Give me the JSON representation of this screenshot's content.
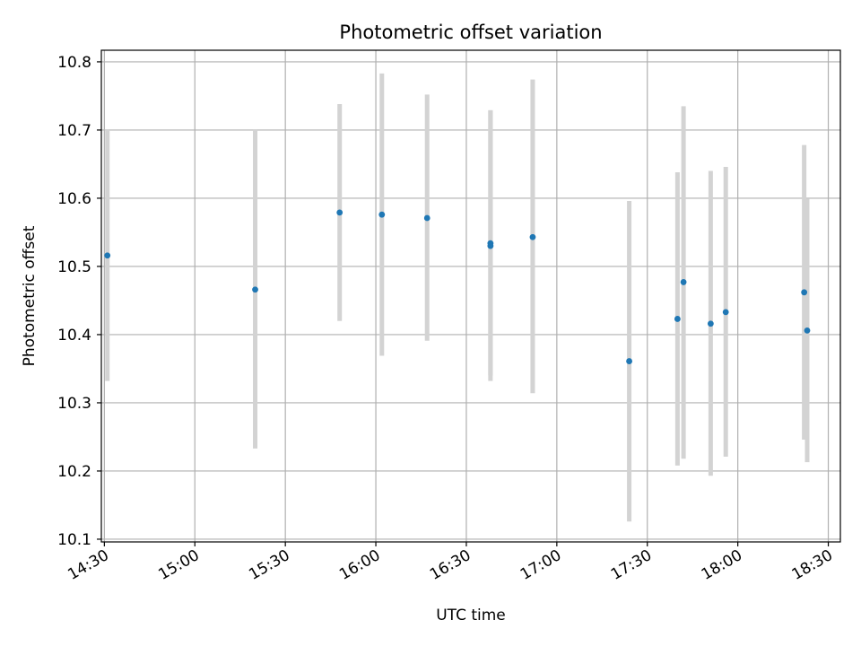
{
  "chart_data": {
    "type": "scatter",
    "title": "Photometric offset variation",
    "xlabel": "UTC time",
    "ylabel": "Photometric offset",
    "x_ticks": [
      "14:30",
      "15:00",
      "15:30",
      "16:00",
      "16:30",
      "17:00",
      "17:30",
      "18:00",
      "18:30"
    ],
    "y_ticks": [
      "10.1",
      "10.2",
      "10.3",
      "10.4",
      "10.5",
      "10.6",
      "10.7",
      "10.8"
    ],
    "xlim": [
      "14:29",
      "18:34"
    ],
    "ylim": [
      10.096,
      10.817
    ],
    "grid": true,
    "colors": {
      "points": "#1f77b4",
      "errorbars": "#d3d3d3",
      "grid": "#b0b0b0"
    },
    "series": [
      {
        "points": [
          {
            "x": "14:31",
            "y": 10.516,
            "ylow": 10.332,
            "yhigh": 10.7
          },
          {
            "x": "15:20",
            "y": 10.466,
            "ylow": 10.233,
            "yhigh": 10.7
          },
          {
            "x": "15:48",
            "y": 10.579,
            "ylow": 10.42,
            "yhigh": 10.738
          },
          {
            "x": "16:02",
            "y": 10.576,
            "ylow": 10.369,
            "yhigh": 10.783
          },
          {
            "x": "16:17",
            "y": 10.571,
            "ylow": 10.391,
            "yhigh": 10.752
          },
          {
            "x": "16:38",
            "y": 10.534,
            "ylow": 10.34,
            "yhigh": 10.729
          },
          {
            "x": "16:38",
            "y": 10.53,
            "ylow": 10.332,
            "yhigh": 10.729
          },
          {
            "x": "16:52",
            "y": 10.543,
            "ylow": 10.314,
            "yhigh": 10.774
          },
          {
            "x": "17:24",
            "y": 10.361,
            "ylow": 10.126,
            "yhigh": 10.596
          },
          {
            "x": "17:40",
            "y": 10.423,
            "ylow": 10.208,
            "yhigh": 10.638
          },
          {
            "x": "17:42",
            "y": 10.477,
            "ylow": 10.218,
            "yhigh": 10.735
          },
          {
            "x": "17:51",
            "y": 10.416,
            "ylow": 10.193,
            "yhigh": 10.64
          },
          {
            "x": "17:56",
            "y": 10.433,
            "ylow": 10.221,
            "yhigh": 10.646
          },
          {
            "x": "18:22",
            "y": 10.462,
            "ylow": 10.246,
            "yhigh": 10.678
          },
          {
            "x": "18:23",
            "y": 10.406,
            "ylow": 10.213,
            "yhigh": 10.599
          }
        ]
      }
    ]
  }
}
